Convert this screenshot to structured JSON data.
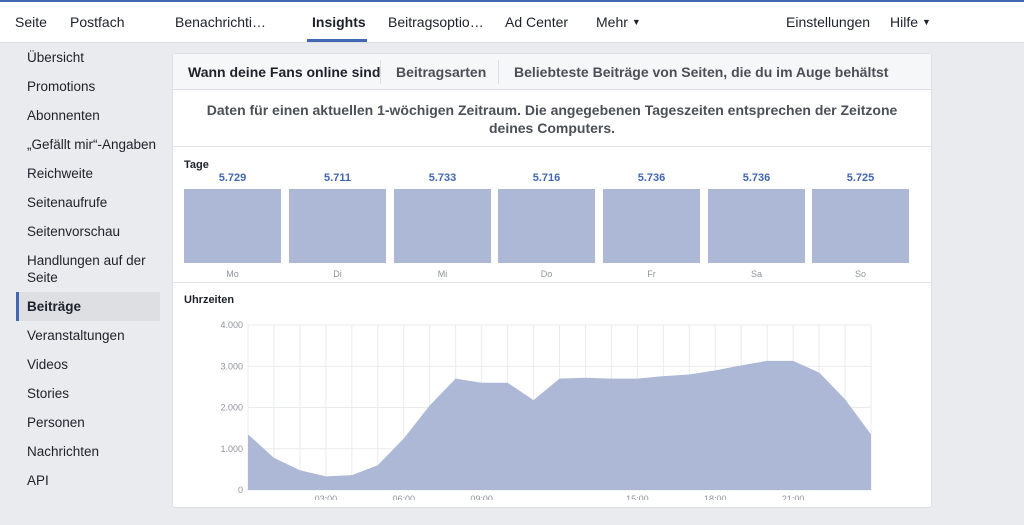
{
  "nav": {
    "items": [
      {
        "label": "Seite",
        "name": "nav-seite"
      },
      {
        "label": "Postfach",
        "name": "nav-postfach"
      },
      {
        "label": "Benachrichti…",
        "name": "nav-benachrichtigungen"
      },
      {
        "label": "Insights",
        "name": "nav-insights",
        "active": true
      },
      {
        "label": "Beitragsoptio…",
        "name": "nav-beitragsoptionen"
      },
      {
        "label": "Ad Center",
        "name": "nav-ad-center"
      },
      {
        "label": "Mehr",
        "name": "nav-mehr",
        "caret": true
      }
    ],
    "right": [
      {
        "label": "Einstellungen",
        "name": "nav-einstellungen"
      },
      {
        "label": "Hilfe",
        "name": "nav-hilfe",
        "caret": true
      }
    ],
    "accent": "#4267b2"
  },
  "sidebar": {
    "items": [
      {
        "label": "Übersicht"
      },
      {
        "label": "Promotions"
      },
      {
        "label": "Abonnenten"
      },
      {
        "label": "„Gefällt mir“-Angaben"
      },
      {
        "label": "Reichweite"
      },
      {
        "label": "Seitenaufrufe"
      },
      {
        "label": "Seitenvorschau"
      },
      {
        "label": "Handlungen auf der Seite"
      },
      {
        "label": "Beiträge",
        "active": true
      },
      {
        "label": "Veranstaltungen"
      },
      {
        "label": "Videos"
      },
      {
        "label": "Stories"
      },
      {
        "label": "Personen"
      },
      {
        "label": "Nachrichten"
      },
      {
        "label": "API"
      }
    ]
  },
  "tabs": {
    "fans_online": "Wann deine Fans online sind",
    "post_types": "Beitragsarten",
    "top_posts": "Beliebteste Beiträge von Seiten, die du im Auge behältst"
  },
  "info_text": "Daten für einen aktuellen 1-wöchigen Zeitraum. Die angegebenen Tageszeiten entsprechen der Zeitzone deines Computers.",
  "days_section": {
    "label": "Tage",
    "days": [
      {
        "name": "Mo",
        "value": "5.729"
      },
      {
        "name": "Di",
        "value": "5.711"
      },
      {
        "name": "Mi",
        "value": "5.733"
      },
      {
        "name": "Do",
        "value": "5.716"
      },
      {
        "name": "Fr",
        "value": "5.736"
      },
      {
        "name": "Sa",
        "value": "5.736"
      },
      {
        "name": "So",
        "value": "5.725"
      }
    ]
  },
  "chart_data": {
    "type": "area",
    "title": "Uhrzeiten",
    "xlabel": "",
    "ylabel": "",
    "x": [
      0,
      1,
      2,
      3,
      4,
      5,
      6,
      7,
      8,
      9,
      10,
      11,
      12,
      13,
      14,
      15,
      16,
      17,
      18,
      19,
      20,
      21,
      22,
      23,
      24
    ],
    "values": [
      1350,
      780,
      480,
      330,
      360,
      600,
      1250,
      2050,
      2700,
      2600,
      2600,
      2180,
      2700,
      2720,
      2700,
      2700,
      2760,
      2800,
      2900,
      3020,
      3130,
      3130,
      2850,
      2200,
      1350
    ],
    "x_ticks": [
      {
        "x": 3,
        "label": "03:00"
      },
      {
        "x": 6,
        "label": "06:00"
      },
      {
        "x": 9,
        "label": "09:00"
      },
      {
        "x": 15,
        "label": "15:00"
      },
      {
        "x": 18,
        "label": "18:00"
      },
      {
        "x": 21,
        "label": "21:00"
      }
    ],
    "y_ticks": [
      {
        "y": 0,
        "label": "0"
      },
      {
        "y": 1000,
        "label": "1.000"
      },
      {
        "y": 2000,
        "label": "2.000"
      },
      {
        "y": 3000,
        "label": "3.000"
      },
      {
        "y": 4000,
        "label": "4.000"
      }
    ],
    "xlim": [
      0,
      24
    ],
    "ylim": [
      0,
      4000
    ],
    "grid": true,
    "fill_color": "#adb8d6",
    "grid_color": "#e9ebee"
  }
}
